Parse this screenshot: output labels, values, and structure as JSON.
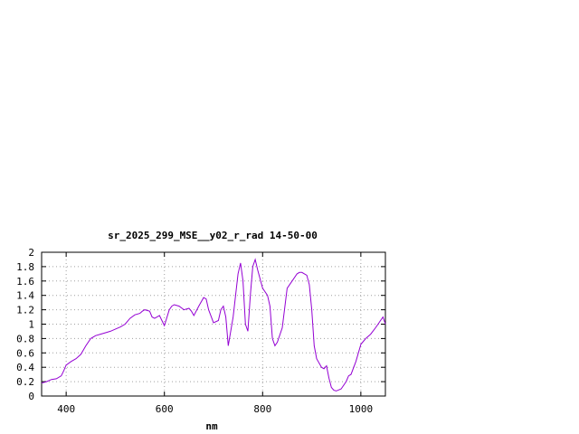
{
  "chart_data": {
    "type": "line",
    "title": "sr_2025_299_MSE__y02_r_rad 14-50-00",
    "xlabel": "nm",
    "ylabel": "",
    "xlim": [
      350,
      1050
    ],
    "ylim": [
      0,
      2
    ],
    "grid": true,
    "xticks": [
      400,
      600,
      800,
      1000
    ],
    "xtick_labels": [
      "400",
      "600",
      "800",
      "1000"
    ],
    "yticks": [
      0,
      0.2,
      0.4,
      0.6,
      0.8,
      1,
      1.2,
      1.4,
      1.6,
      1.8,
      2
    ],
    "ytick_labels": [
      "0",
      "0.2",
      "0.4",
      "0.6",
      "0.8",
      "1",
      "1.2",
      "1.4",
      "1.6",
      "1.8",
      "2"
    ],
    "line_color": "#9400d3",
    "series": [
      {
        "x": [
          350,
          360,
          370,
          380,
          390,
          395,
          400,
          410,
          420,
          430,
          440,
          450,
          460,
          470,
          480,
          490,
          500,
          510,
          520,
          530,
          540,
          550,
          555,
          560,
          570,
          575,
          580,
          585,
          590,
          600,
          610,
          615,
          620,
          630,
          640,
          650,
          655,
          660,
          670,
          680,
          685,
          690,
          700,
          710,
          715,
          720,
          725,
          730,
          740,
          750,
          755,
          760,
          765,
          770,
          775,
          780,
          785,
          790,
          800,
          810,
          815,
          820,
          825,
          830,
          840,
          850,
          860,
          870,
          875,
          880,
          890,
          895,
          900,
          905,
          910,
          920,
          925,
          930,
          935,
          940,
          945,
          950,
          960,
          970,
          975,
          980,
          990,
          1000,
          1010,
          1020,
          1030,
          1035,
          1040,
          1045,
          1050
        ],
        "y": [
          0.18,
          0.2,
          0.23,
          0.24,
          0.28,
          0.35,
          0.43,
          0.48,
          0.52,
          0.58,
          0.7,
          0.8,
          0.84,
          0.86,
          0.88,
          0.9,
          0.93,
          0.96,
          1.0,
          1.08,
          1.13,
          1.15,
          1.18,
          1.2,
          1.18,
          1.1,
          1.08,
          1.1,
          1.12,
          0.98,
          1.2,
          1.25,
          1.27,
          1.25,
          1.2,
          1.22,
          1.18,
          1.12,
          1.25,
          1.37,
          1.35,
          1.2,
          1.02,
          1.05,
          1.2,
          1.25,
          1.1,
          0.7,
          1.1,
          1.7,
          1.85,
          1.6,
          1.0,
          0.9,
          1.4,
          1.8,
          1.9,
          1.75,
          1.5,
          1.4,
          1.25,
          0.8,
          0.7,
          0.75,
          0.95,
          1.5,
          1.6,
          1.7,
          1.72,
          1.72,
          1.68,
          1.55,
          1.2,
          0.7,
          0.52,
          0.4,
          0.38,
          0.42,
          0.25,
          0.12,
          0.08,
          0.07,
          0.1,
          0.2,
          0.28,
          0.3,
          0.48,
          0.72,
          0.8,
          0.86,
          0.95,
          1.0,
          1.05,
          1.1,
          1.0
        ]
      }
    ]
  }
}
